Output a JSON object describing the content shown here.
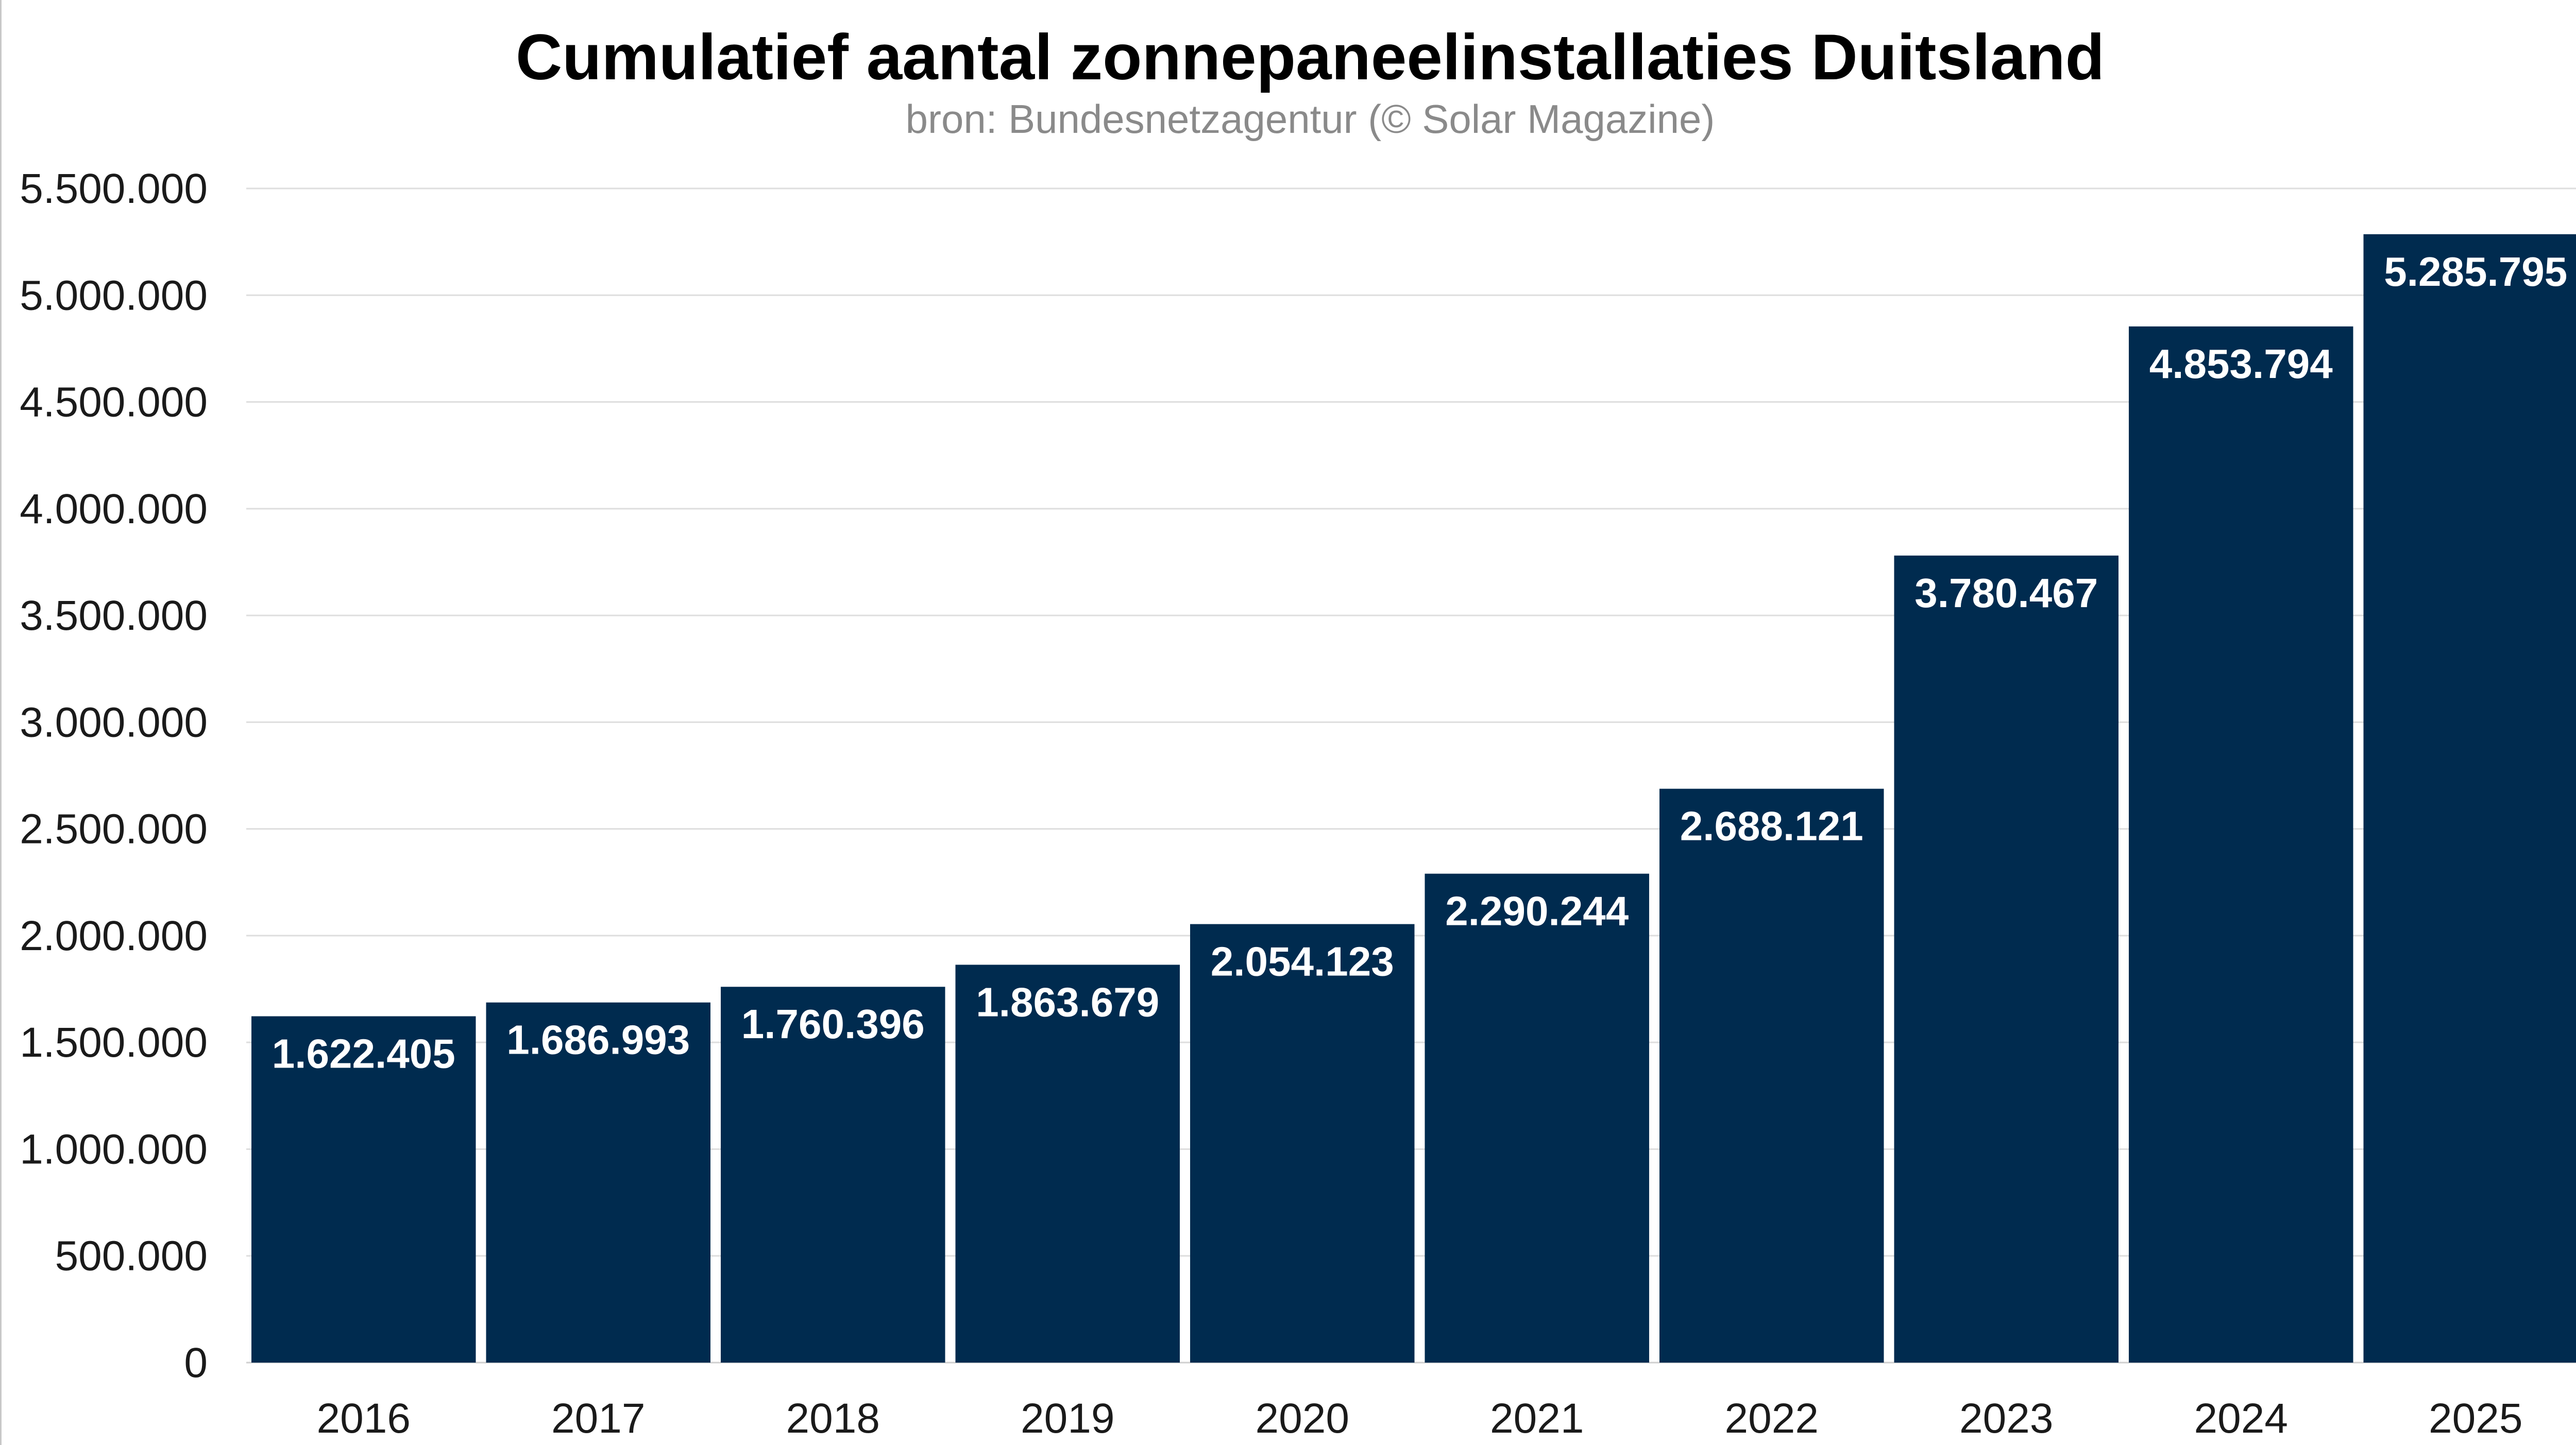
{
  "chart_data": {
    "type": "bar",
    "title": "Cumulatief aantal zonnepaneelinstallaties Duitsland",
    "subtitle": "bron: Bundesnetzagentur (© Solar Magazine)",
    "xlabel": "",
    "ylabel": "",
    "categories": [
      "2016",
      "2017",
      "2018",
      "2019",
      "2020",
      "2021",
      "2022",
      "2023",
      "2024",
      "2025"
    ],
    "values": [
      1622405,
      1686993,
      1760396,
      1863679,
      2054123,
      2290244,
      2688121,
      3780467,
      4853794,
      5285795
    ],
    "data_labels": [
      "1.622.405",
      "1.686.993",
      "1.760.396",
      "1.863.679",
      "2.054.123",
      "2.290.244",
      "2.688.121",
      "3.780.467",
      "4.853.794",
      "5.285.795"
    ],
    "ylim": [
      0,
      5500000
    ],
    "yticks": [
      0,
      500000,
      1000000,
      1500000,
      2000000,
      2500000,
      3000000,
      3500000,
      4000000,
      4500000,
      5000000,
      5500000
    ],
    "ytick_labels": [
      "0",
      "500.000",
      "1.000.000",
      "1.500.000",
      "2.000.000",
      "2.500.000",
      "3.000.000",
      "3.500.000",
      "4.000.000",
      "4.500.000",
      "5.000.000",
      "5.500.000"
    ],
    "grid": true,
    "legend": "none",
    "bar_color": "#002b4f",
    "data_label_color": "#ffffff"
  }
}
